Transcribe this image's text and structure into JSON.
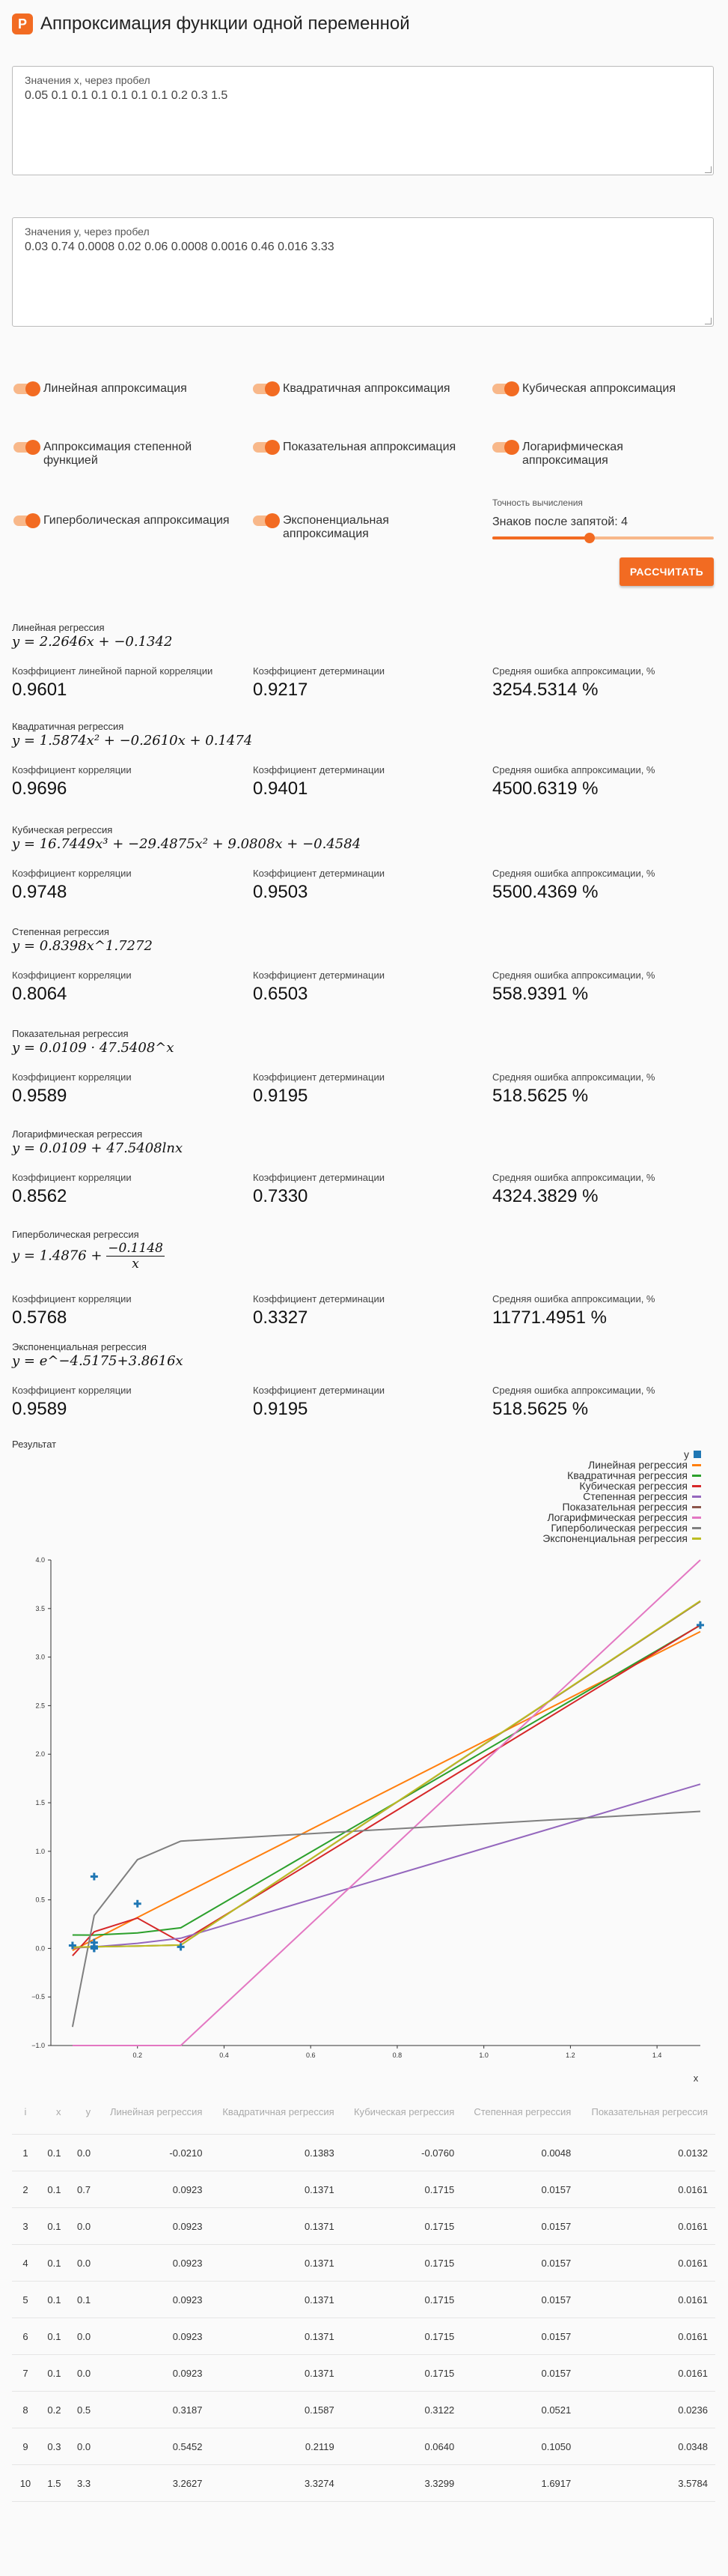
{
  "app": {
    "title": "Аппроксимация функции одной переменной",
    "logo_letter": "P",
    "accent": "#f26b22"
  },
  "inputs": {
    "x": {
      "label": "Значения x, через пробел",
      "value": "0.05 0.1 0.1 0.1 0.1 0.1 0.1 0.2 0.3 1.5"
    },
    "y": {
      "label": "Значения y, через пробел",
      "value": "0.03 0.74 0.0008 0.02 0.06 0.0008 0.0016 0.46 0.016 3.33"
    }
  },
  "options": [
    {
      "label": "Линейная аппроксимация",
      "checked": true
    },
    {
      "label": "Квадратичная аппроксимация",
      "checked": true
    },
    {
      "label": "Кубическая аппроксимация",
      "checked": true
    },
    {
      "label": "Аппроксимация степенной функцией",
      "checked": true
    },
    {
      "label": "Показательная аппроксимация",
      "checked": true
    },
    {
      "label": "Логарифмическая аппроксимация",
      "checked": true
    },
    {
      "label": "Гиперболическая аппроксимация",
      "checked": true
    },
    {
      "label": "Экспоненциальная аппроксимация",
      "checked": true
    }
  ],
  "precision": {
    "label": "Точность вычисления",
    "value_text": "Знаков после запятой: 4",
    "level_fraction": 0.44
  },
  "calc_button": "РАССЧИТАТЬ",
  "regressions": [
    {
      "name": "Линейная регрессия",
      "formula": "y = 2.2646x + −0.1342",
      "m1_label": "Коэффициент линейной парной корреляции",
      "m1": "0.9601",
      "m2_label": "Коэффициент детерминации",
      "m2": "0.9217",
      "m3_label": "Средняя ошибка аппроксимации, %",
      "m3": "3254.5314 %"
    },
    {
      "name": "Квадратичная регрессия",
      "formula": "y = 1.5874x² + −0.2610x + 0.1474",
      "m1_label": "Коэффициент корреляции",
      "m1": "0.9696",
      "m2_label": "Коэффициент детерминации",
      "m2": "0.9401",
      "m3_label": "Средняя ошибка аппроксимации, %",
      "m3": "4500.6319 %"
    },
    {
      "name": "Кубическая регрессия",
      "formula": "y = 16.7449x³ + −29.4875x² + 9.0808x + −0.4584",
      "m1_label": "Коэффициент корреляции",
      "m1": "0.9748",
      "m2_label": "Коэффициент детерминации",
      "m2": "0.9503",
      "m3_label": "Средняя ошибка аппроксимации, %",
      "m3": "5500.4369 %"
    },
    {
      "name": "Степенная регрессия",
      "formula": "y = 0.8398x^1.7272",
      "m1_label": "Коэффициент корреляции",
      "m1": "0.8064",
      "m2_label": "Коэффициент детерминации",
      "m2": "0.6503",
      "m3_label": "Средняя ошибка аппроксимации, %",
      "m3": "558.9391 %"
    },
    {
      "name": "Показательная регрессия",
      "formula": "y = 0.0109 · 47.5408^x",
      "m1_label": "Коэффициент корреляции",
      "m1": "0.9589",
      "m2_label": "Коэффициент детерминации",
      "m2": "0.9195",
      "m3_label": "Средняя ошибка аппроксимации, %",
      "m3": "518.5625 %"
    },
    {
      "name": "Логарифмическая регрессия",
      "formula": "y = 0.0109 + 47.5408lnx",
      "m1_label": "Коэффициент корреляции",
      "m1": "0.8562",
      "m2_label": "Коэффициент детерминации",
      "m2": "0.7330",
      "m3_label": "Средняя ошибка аппроксимации, %",
      "m3": "4324.3829 %"
    },
    {
      "name": "Гиперболическая регрессия",
      "formula_prefix": "y = 1.4876 + ",
      "formula_num": "−0.1148",
      "formula_den": "x",
      "m1_label": "Коэффициент корреляции",
      "m1": "0.5768",
      "m2_label": "Коэффициент детерминации",
      "m2": "0.3327",
      "m3_label": "Средняя ошибка аппроксимации, %",
      "m3": "11771.4951 %"
    },
    {
      "name": "Экспоненциальная регрессия",
      "formula": "y = e^−4.5175+3.8616x",
      "m1_label": "Коэффициент корреляции",
      "m1": "0.9589",
      "m2_label": "Коэффициент детерминации",
      "m2": "0.9195",
      "m3_label": "Средняя ошибка аппроксимации, %",
      "m3": "518.5625 %"
    }
  ],
  "result_label": "Результат",
  "chart_data": {
    "type": "scatter",
    "xlabel": "x",
    "ylabel": "",
    "xlim": [
      0,
      1.5
    ],
    "ylim": [
      -1.0,
      4.0
    ],
    "x_ticks": [
      "0.2",
      "0.4",
      "0.6",
      "0.8",
      "1.0",
      "1.2",
      "1.4"
    ],
    "y_ticks": [
      "−1.0",
      "−0.5",
      "0.0",
      "0.5",
      "1.0",
      "1.5",
      "2.0",
      "2.5",
      "3.0",
      "3.5",
      "4.0"
    ],
    "grid": false,
    "legend_position": "top-right",
    "points": {
      "name": "y",
      "color": "#1f77b4",
      "x": [
        0.05,
        0.1,
        0.1,
        0.1,
        0.1,
        0.1,
        0.1,
        0.2,
        0.3,
        1.5
      ],
      "y": [
        0.03,
        0.74,
        0.0008,
        0.02,
        0.06,
        0.0008,
        0.0016,
        0.46,
        0.016,
        3.33
      ]
    },
    "series": [
      {
        "name": "Линейная регрессия",
        "color": "#ff7f0e"
      },
      {
        "name": "Квадратичная регрессия",
        "color": "#2ca02c"
      },
      {
        "name": "Кубическая регрессия",
        "color": "#d62728"
      },
      {
        "name": "Степенная регрессия",
        "color": "#9467bd"
      },
      {
        "name": "Показательная регрессия",
        "color": "#8c564b"
      },
      {
        "name": "Логарифмическая регрессия",
        "color": "#e377c2"
      },
      {
        "name": "Гиперболическая регрессия",
        "color": "#7f7f7f"
      },
      {
        "name": "Экспоненциальная регрессия",
        "color": "#bcbd22"
      }
    ]
  },
  "table": {
    "headers": [
      "i",
      "x",
      "y",
      "Линейная регрессия",
      "Квадратичная регрессия",
      "Кубическая регрессия",
      "Степенная регрессия",
      "Показательная регрессия"
    ],
    "rows": [
      [
        "1",
        "0.1",
        "0.0",
        "-0.0210",
        "0.1383",
        "-0.0760",
        "0.0048",
        "0.0132"
      ],
      [
        "2",
        "0.1",
        "0.7",
        "0.0923",
        "0.1371",
        "0.1715",
        "0.0157",
        "0.0161"
      ],
      [
        "3",
        "0.1",
        "0.0",
        "0.0923",
        "0.1371",
        "0.1715",
        "0.0157",
        "0.0161"
      ],
      [
        "4",
        "0.1",
        "0.0",
        "0.0923",
        "0.1371",
        "0.1715",
        "0.0157",
        "0.0161"
      ],
      [
        "5",
        "0.1",
        "0.1",
        "0.0923",
        "0.1371",
        "0.1715",
        "0.0157",
        "0.0161"
      ],
      [
        "6",
        "0.1",
        "0.0",
        "0.0923",
        "0.1371",
        "0.1715",
        "0.0157",
        "0.0161"
      ],
      [
        "7",
        "0.1",
        "0.0",
        "0.0923",
        "0.1371",
        "0.1715",
        "0.0157",
        "0.0161"
      ],
      [
        "8",
        "0.2",
        "0.5",
        "0.3187",
        "0.1587",
        "0.3122",
        "0.0521",
        "0.0236"
      ],
      [
        "9",
        "0.3",
        "0.0",
        "0.5452",
        "0.2119",
        "0.0640",
        "0.1050",
        "0.0348"
      ],
      [
        "10",
        "1.5",
        "3.3",
        "3.2627",
        "3.3274",
        "3.3299",
        "1.6917",
        "3.5784"
      ]
    ]
  }
}
